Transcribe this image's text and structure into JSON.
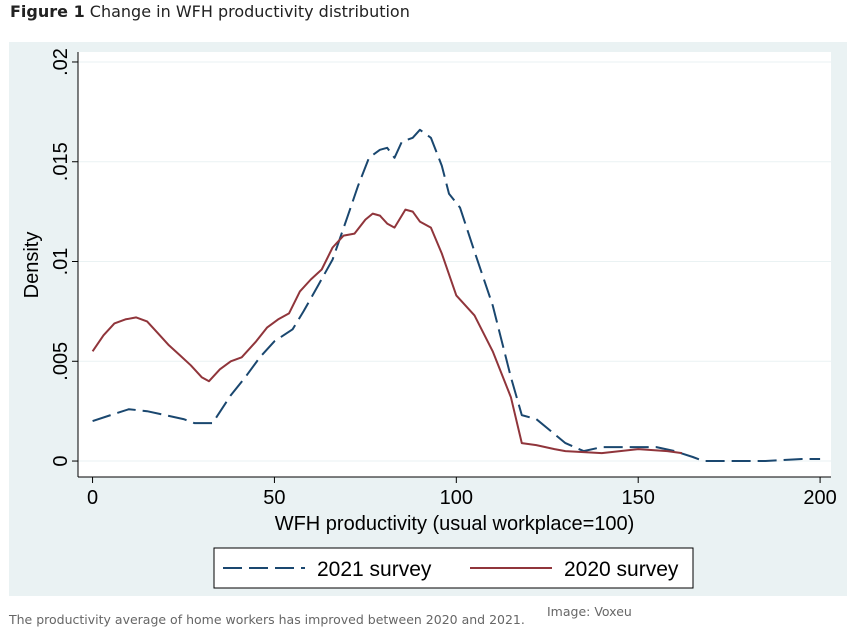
{
  "figure": {
    "label": "Figure 1",
    "title": "Change in WFH productivity distribution",
    "caption": "The productivity average of home workers has improved between 2020 and 2021.",
    "credit": "Image: Voxeu"
  },
  "chart_data": {
    "type": "line",
    "xlabel": "WFH productivity (usual workplace=100)",
    "ylabel": "Density",
    "xlim": [
      -4,
      203
    ],
    "ylim": [
      -0.0008,
      0.0205
    ],
    "xticks": [
      0,
      50,
      100,
      150,
      200
    ],
    "xtick_labels": [
      "0",
      "50",
      "100",
      "150",
      "200"
    ],
    "yticks": [
      0,
      0.005,
      0.01,
      0.015,
      0.02
    ],
    "ytick_labels": [
      "0",
      ".005",
      ".01",
      ".015",
      ".02"
    ],
    "grid": true,
    "legend_position": "bottom",
    "colors": {
      "plot_bg": "#ffffff",
      "outer_bg": "#eaf2f3",
      "grid": "#eaf2f3",
      "axis": "#000000"
    },
    "series": [
      {
        "name": "2021 survey",
        "style": "dashed",
        "color": "#1a476f",
        "points": [
          [
            0,
            0.002
          ],
          [
            5,
            0.0023
          ],
          [
            10,
            0.0026
          ],
          [
            15,
            0.0025
          ],
          [
            20,
            0.0023
          ],
          [
            25,
            0.0021
          ],
          [
            28,
            0.0019
          ],
          [
            33,
            0.0019
          ],
          [
            38,
            0.0033
          ],
          [
            42,
            0.0042
          ],
          [
            46,
            0.0052
          ],
          [
            50,
            0.006
          ],
          [
            55,
            0.0066
          ],
          [
            58,
            0.0075
          ],
          [
            62,
            0.0088
          ],
          [
            66,
            0.0101
          ],
          [
            70,
            0.0122
          ],
          [
            73,
            0.0138
          ],
          [
            76,
            0.0152
          ],
          [
            79,
            0.0156
          ],
          [
            81,
            0.0157
          ],
          [
            83,
            0.0152
          ],
          [
            85,
            0.016
          ],
          [
            88,
            0.0162
          ],
          [
            90,
            0.0166
          ],
          [
            93,
            0.0162
          ],
          [
            96,
            0.0148
          ],
          [
            98,
            0.0134
          ],
          [
            101,
            0.0127
          ],
          [
            105,
            0.0105
          ],
          [
            110,
            0.0078
          ],
          [
            115,
            0.0042
          ],
          [
            118,
            0.0023
          ],
          [
            122,
            0.0021
          ],
          [
            126,
            0.0015
          ],
          [
            130,
            0.0009
          ],
          [
            135,
            0.0005
          ],
          [
            140,
            0.0007
          ],
          [
            145,
            0.0007
          ],
          [
            150,
            0.0007
          ],
          [
            155,
            0.0007
          ],
          [
            160,
            0.0005
          ],
          [
            165,
            0.0002
          ],
          [
            168,
            0
          ],
          [
            175,
            0
          ],
          [
            185,
            0
          ],
          [
            195,
            0.0001
          ],
          [
            200,
            0.0001
          ]
        ]
      },
      {
        "name": "2020 survey",
        "style": "solid",
        "color": "#90353b",
        "points": [
          [
            0,
            0.0055
          ],
          [
            3,
            0.0063
          ],
          [
            6,
            0.0069
          ],
          [
            9,
            0.0071
          ],
          [
            12,
            0.0072
          ],
          [
            15,
            0.007
          ],
          [
            18,
            0.0064
          ],
          [
            21,
            0.0058
          ],
          [
            24,
            0.0053
          ],
          [
            27,
            0.0048
          ],
          [
            30,
            0.0042
          ],
          [
            32,
            0.004
          ],
          [
            35,
            0.0046
          ],
          [
            38,
            0.005
          ],
          [
            41,
            0.0052
          ],
          [
            45,
            0.006
          ],
          [
            48,
            0.0067
          ],
          [
            51,
            0.0071
          ],
          [
            54,
            0.0074
          ],
          [
            57,
            0.0085
          ],
          [
            60,
            0.0091
          ],
          [
            63,
            0.0096
          ],
          [
            66,
            0.0107
          ],
          [
            69,
            0.0113
          ],
          [
            72,
            0.0114
          ],
          [
            75,
            0.0121
          ],
          [
            77,
            0.0124
          ],
          [
            79,
            0.0123
          ],
          [
            81,
            0.0119
          ],
          [
            83,
            0.0117
          ],
          [
            86,
            0.0126
          ],
          [
            88,
            0.0125
          ],
          [
            90,
            0.012
          ],
          [
            93,
            0.0117
          ],
          [
            96,
            0.0104
          ],
          [
            100,
            0.0083
          ],
          [
            105,
            0.0073
          ],
          [
            110,
            0.0055
          ],
          [
            115,
            0.0032
          ],
          [
            118,
            0.0009
          ],
          [
            122,
            0.0008
          ],
          [
            127,
            0.0006
          ],
          [
            130,
            0.0005
          ],
          [
            140,
            0.0004
          ],
          [
            150,
            0.0006
          ],
          [
            158,
            0.0005
          ],
          [
            162,
            0.0004
          ]
        ]
      }
    ]
  }
}
